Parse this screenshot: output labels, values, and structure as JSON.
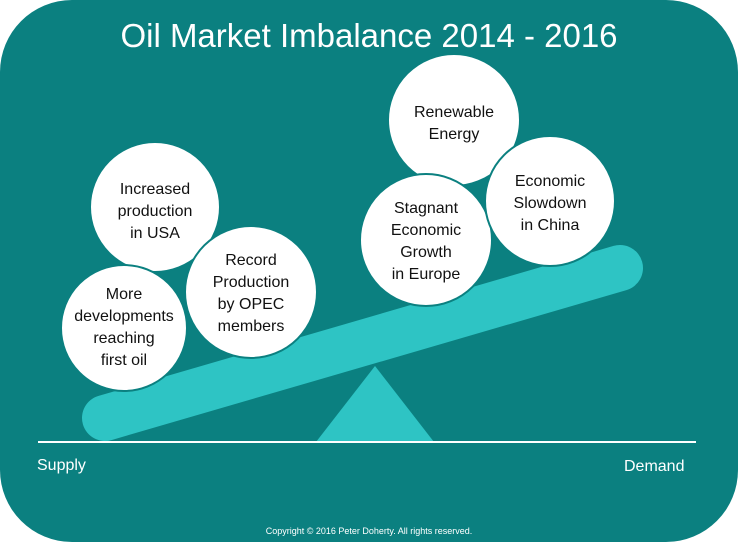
{
  "title": "Oil Market Imbalance 2014 - 2016",
  "supply_label": "Supply",
  "demand_label": "Demand",
  "copyright": "Copyright  © 2016 Peter Doherty.  All rights reserved.",
  "supply_factors": [
    "Increased\nproduction\nin USA",
    "More\ndevelopments\nreaching\nfirst oil",
    "Record\nProduction\nby OPEC\nmembers"
  ],
  "demand_factors": [
    "Renewable\nEnergy",
    "Stagnant\nEconomic\nGrowth\nin Europe",
    "Economic\nSlowdown\nin China"
  ],
  "colors": {
    "background": "#0b8080",
    "beam": "#2ec4c4",
    "bubble": "#ffffff"
  }
}
